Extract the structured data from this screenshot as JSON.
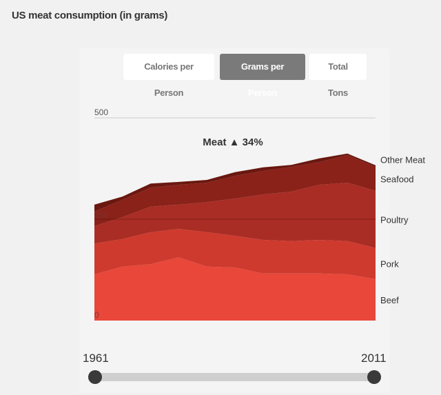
{
  "title": "US meat consumption (in grams)",
  "buttons": [
    {
      "label": "Calories per Person",
      "active": false
    },
    {
      "label": "Grams per Person",
      "active": true
    },
    {
      "label": "Total Tons",
      "active": false
    }
  ],
  "slider": {
    "start": "1961",
    "end": "2011",
    "range": [
      1961,
      2011
    ]
  },
  "chart_data": {
    "type": "area",
    "stacked": true,
    "annotation": "Meat ▲ 34%",
    "ylim": [
      0,
      500
    ],
    "yticks": [
      "0",
      "250",
      "500"
    ],
    "x": [
      1961,
      1966,
      1971,
      1976,
      1981,
      1986,
      1991,
      1996,
      2001,
      2006,
      2011
    ],
    "series": [
      {
        "name": "Beef",
        "color": "#e8473a",
        "values": [
          114,
          133,
          139,
          156,
          133,
          131,
          116,
          116,
          116,
          114,
          102
        ]
      },
      {
        "name": "Pork",
        "color": "#cf3a2e",
        "values": [
          76,
          68,
          79,
          70,
          85,
          78,
          83,
          80,
          83,
          82,
          77
        ]
      },
      {
        "name": "Poultry",
        "color": "#a92d25",
        "values": [
          43,
          54,
          63,
          60,
          74,
          92,
          112,
          122,
          136,
          144,
          141
        ]
      },
      {
        "name": "Seafood",
        "color": "#8a2219",
        "values": [
          36,
          43,
          47,
          49,
          48,
          56,
          58,
          61,
          56,
          68,
          59
        ]
      },
      {
        "name": "Other Meat",
        "color": "#6a1810",
        "values": [
          17,
          8,
          10,
          7,
          7,
          9,
          9,
          5,
          9,
          4,
          4
        ]
      }
    ]
  }
}
